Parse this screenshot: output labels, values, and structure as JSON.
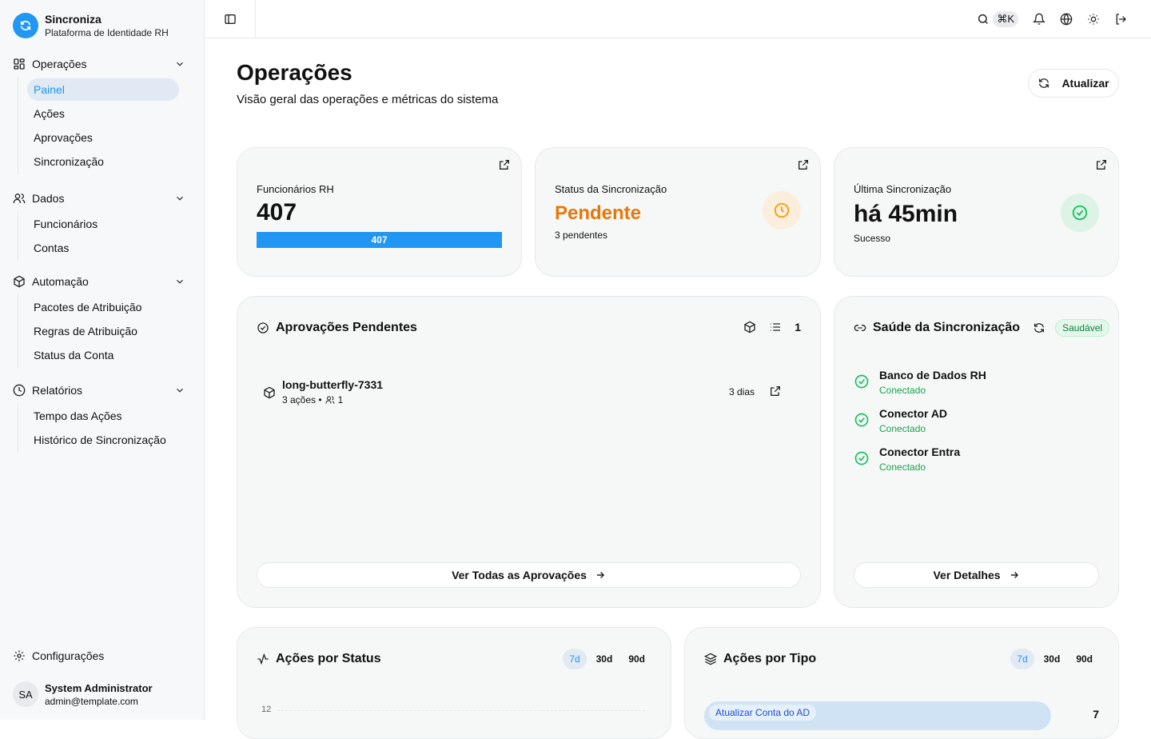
{
  "brand": {
    "name": "Sincroniza",
    "subtitle": "Plataforma de Identidade RH"
  },
  "sidebar": {
    "groups": [
      {
        "label": "Operações",
        "icon": "grid-icon",
        "items": [
          "Painel",
          "Ações",
          "Aprovações",
          "Sincronização"
        ]
      },
      {
        "label": "Dados",
        "icon": "users-icon",
        "items": [
          "Funcionários",
          "Contas"
        ]
      },
      {
        "label": "Automação",
        "icon": "package-icon",
        "items": [
          "Pacotes de Atribuição",
          "Regras de Atribuição",
          "Status da Conta"
        ]
      },
      {
        "label": "Relatórios",
        "icon": "clock-icon",
        "items": [
          "Tempo das Ações",
          "Histórico de Sincronização"
        ]
      }
    ],
    "active": "Painel",
    "settings": "Configurações",
    "user": {
      "initials": "SA",
      "name": "System Administrator",
      "email": "admin@template.com"
    }
  },
  "topbar": {
    "shortcut": "⌘K"
  },
  "page": {
    "title": "Operações",
    "subtitle": "Visão geral das operações e métricas do sistema",
    "refresh": "Atualizar"
  },
  "stats": {
    "employees": {
      "label": "Funcionários RH",
      "value": "407",
      "bar_label": "407",
      "progress": 1.0
    },
    "sync_status": {
      "label": "Status da Sincronização",
      "value": "Pendente",
      "sub": "3 pendentes",
      "color": "#e8770a"
    },
    "last_sync": {
      "label": "Última Sincronização",
      "value": "há 45min",
      "sub": "Sucesso"
    }
  },
  "approvals": {
    "title": "Aprovações Pendentes",
    "count": "1",
    "items": [
      {
        "name": "long-butterfly-7331",
        "actions": "3 ações •",
        "users": "1",
        "age": "3 dias"
      }
    ],
    "view_all": "Ver Todas as Aprovações"
  },
  "health": {
    "title": "Saúde da Sincronização",
    "badge": "Saudável",
    "items": [
      {
        "name": "Banco de Dados RH",
        "status": "Conectado"
      },
      {
        "name": "Conector AD",
        "status": "Conectado"
      },
      {
        "name": "Conector Entra",
        "status": "Conectado"
      }
    ],
    "details": "Ver Detalhes"
  },
  "by_status": {
    "title": "Ações por Status",
    "ranges": [
      "7d",
      "30d",
      "90d"
    ],
    "active": "7d",
    "y_tick": "12"
  },
  "by_type": {
    "title": "Ações por Tipo",
    "ranges": [
      "7d",
      "30d",
      "90d"
    ],
    "active": "7d",
    "rows": [
      {
        "label": "Atualizar Conta do AD",
        "value": "7"
      }
    ]
  }
}
